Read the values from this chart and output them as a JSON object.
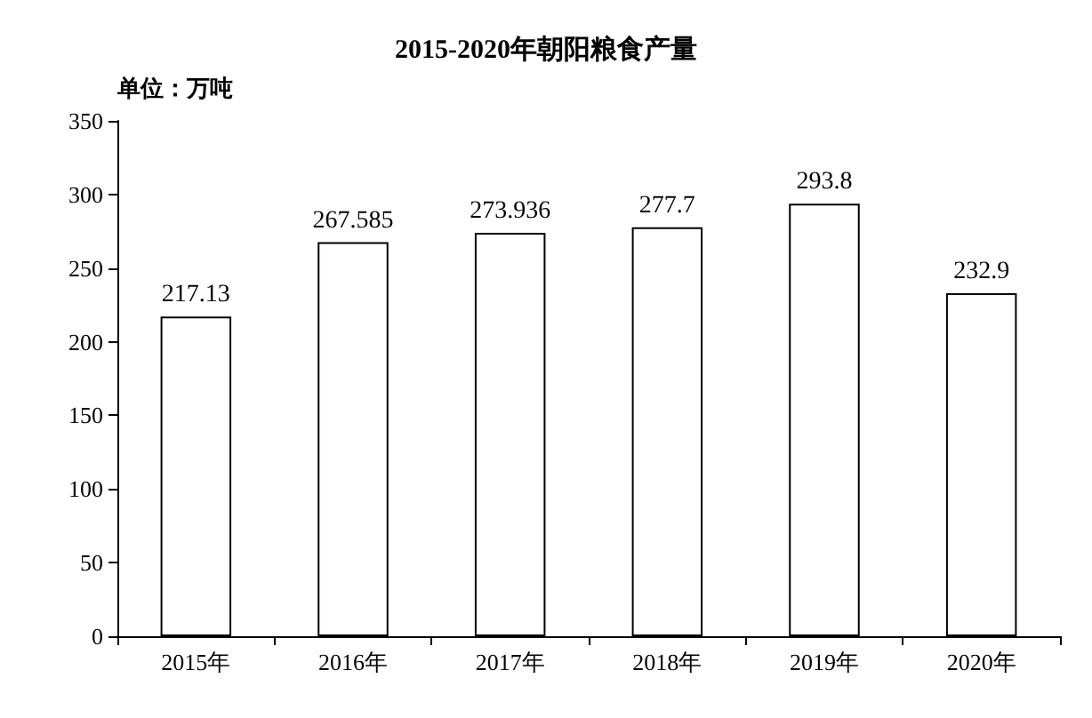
{
  "chart_data": {
    "type": "bar",
    "title": "2015-2020年朝阳粮食产量",
    "ylabel": "单位：万吨",
    "categories": [
      "2015年",
      "2016年",
      "2017年",
      "2018年",
      "2019年",
      "2020年"
    ],
    "values": [
      217.13,
      267.585,
      273.936,
      277.7,
      293.8,
      232.9
    ],
    "color": "#ffffff",
    "ylim": [
      0,
      350
    ],
    "yticks": [
      0,
      50,
      100,
      150,
      200,
      250,
      300,
      350
    ],
    "grid": false,
    "data_labels": true
  }
}
